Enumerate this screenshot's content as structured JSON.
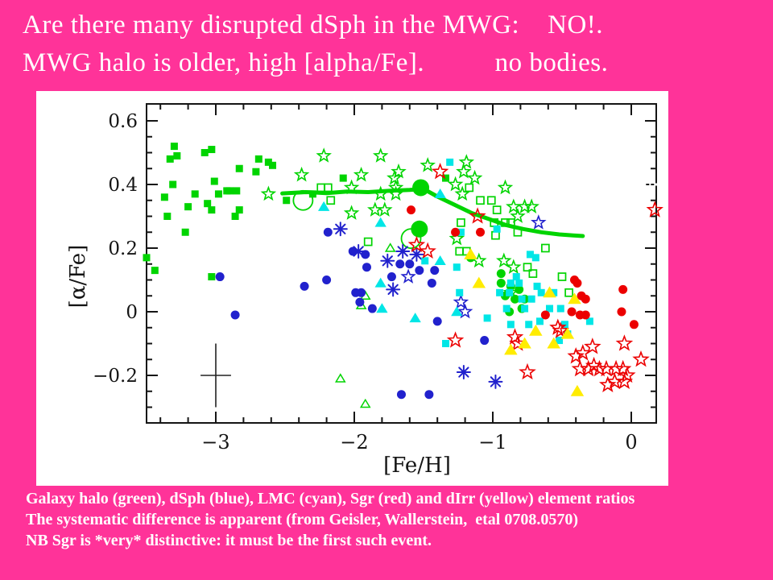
{
  "slide": {
    "background_color": "#FF3399",
    "title_line1": "Are there many disrupted dSph in the MWG:    NO!.",
    "title_line2": "MWG halo is older, high [alpha/Fe].          no bodies.",
    "caption_line1": "Galaxy halo (green), dSph (blue), LMC (cyan), Sgr (red) and dIrr (yellow) element ratios",
    "caption_line2": "The systematic difference is apparent (from Geisler, Wallerstein,  etal 0708.0570)",
    "caption_line3": "NB Sgr is *very* distinctive: it must be the first such event."
  },
  "chart_data": {
    "type": "scatter",
    "title": "",
    "xlabel": "[Fe/H]",
    "ylabel": "[α/Fe]",
    "xlim": [
      -3.5,
      0.18
    ],
    "ylim": [
      -0.35,
      0.653
    ],
    "grid": false,
    "legend_position": "none (legend given in caption text)",
    "x_ticks_major": [
      -3,
      -2,
      -1,
      0
    ],
    "x_tick_labels": [
      "−3",
      "−2",
      "−1",
      "0"
    ],
    "x_minor_step": 0.2,
    "y_ticks_major": [
      0.6,
      0.4,
      0.2,
      0,
      -0.2
    ],
    "y_tick_labels": [
      "0.6",
      "0.4",
      "0.2",
      "0",
      "−0.2"
    ],
    "y_minor_step": 0.05,
    "colors": {
      "green": "#00d400",
      "blue": "#2121cd",
      "cyan": "#00e6e6",
      "red": "#ec0000",
      "yellow": "#ffec00",
      "axis": "#151515",
      "panel": "#ffffff"
    },
    "series": [
      {
        "name": "galaxy-halo-filled-squares",
        "legend": "Galaxy halo (green)",
        "marker": "square-filled",
        "color": "green",
        "size": 9,
        "points": [
          [
            -3.3,
            0.52
          ],
          [
            -3.28,
            0.49
          ],
          [
            -3.33,
            0.48
          ],
          [
            -3.08,
            0.5
          ],
          [
            -3.03,
            0.51
          ],
          [
            -3.31,
            0.4
          ],
          [
            -3.37,
            0.36
          ],
          [
            -3.35,
            0.3
          ],
          [
            -3.2,
            0.33
          ],
          [
            -3.22,
            0.25
          ],
          [
            -3.15,
            0.37
          ],
          [
            -3.06,
            0.34
          ],
          [
            -3.03,
            0.32
          ],
          [
            -3.01,
            0.41
          ],
          [
            -2.98,
            0.37
          ],
          [
            -2.92,
            0.38
          ],
          [
            -2.9,
            0.38
          ],
          [
            -2.85,
            0.38
          ],
          [
            -2.83,
            0.45
          ],
          [
            -2.83,
            0.32
          ],
          [
            -2.86,
            0.3
          ],
          [
            -2.71,
            0.44
          ],
          [
            -2.69,
            0.48
          ],
          [
            -2.62,
            0.47
          ],
          [
            -2.59,
            0.46
          ],
          [
            -2.49,
            0.35
          ],
          [
            -2.3,
            0.37
          ],
          [
            -2.08,
            0.42
          ],
          [
            -1.34,
            0.42
          ],
          [
            -3.5,
            0.17
          ],
          [
            -3.44,
            0.13
          ],
          [
            -3.03,
            0.11
          ]
        ]
      },
      {
        "name": "halo-open-stars",
        "legend": "Galaxy halo (green)",
        "marker": "star-open",
        "color": "green",
        "size": 8,
        "points": [
          [
            -2.22,
            0.49
          ],
          [
            -1.81,
            0.49
          ],
          [
            -2.38,
            0.43
          ],
          [
            -1.95,
            0.43
          ],
          [
            -1.68,
            0.44
          ],
          [
            -2.62,
            0.37
          ],
          [
            -2.02,
            0.39
          ],
          [
            -1.71,
            0.42
          ],
          [
            -1.7,
            0.39
          ],
          [
            -1.81,
            0.37
          ],
          [
            -1.7,
            0.37
          ],
          [
            -1.85,
            0.32
          ],
          [
            -1.78,
            0.32
          ],
          [
            -2.02,
            0.31
          ],
          [
            -1.19,
            0.47
          ],
          [
            -1.21,
            0.44
          ],
          [
            -1.27,
            0.4
          ],
          [
            -1.22,
            0.37
          ],
          [
            -1.47,
            0.46
          ],
          [
            -1.13,
            0.42
          ],
          [
            -0.91,
            0.39
          ],
          [
            -0.85,
            0.33
          ],
          [
            -0.77,
            0.33
          ],
          [
            -0.72,
            0.33
          ],
          [
            -0.82,
            0.3
          ],
          [
            -1.26,
            0.23
          ],
          [
            -1.1,
            0.16
          ],
          [
            -0.92,
            0.16
          ],
          [
            -0.85,
            0.14
          ],
          [
            -0.87,
            0.06
          ]
        ]
      },
      {
        "name": "halo-open-squares",
        "legend": "Galaxy halo (green)",
        "marker": "square-open",
        "color": "green",
        "size": 9,
        "points": [
          [
            -2.24,
            0.39
          ],
          [
            -2.19,
            0.39
          ],
          [
            -2.17,
            0.35
          ],
          [
            -1.9,
            0.22
          ],
          [
            -1.17,
            0.39
          ],
          [
            -1.09,
            0.35
          ],
          [
            -1.01,
            0.35
          ],
          [
            -0.97,
            0.32
          ],
          [
            -1.23,
            0.28
          ],
          [
            -0.99,
            0.28
          ],
          [
            -0.91,
            0.28
          ],
          [
            -0.87,
            0.28
          ],
          [
            -0.82,
            0.25
          ],
          [
            -0.98,
            0.24
          ],
          [
            -1.24,
            0.19
          ],
          [
            -1.19,
            0.19
          ],
          [
            -0.62,
            0.2
          ],
          [
            -0.75,
            0.14
          ],
          [
            -0.5,
            0.11
          ],
          [
            -0.71,
            0.12
          ],
          [
            -0.45,
            0.06
          ]
        ]
      },
      {
        "name": "green-open-triangles",
        "legend": "Galaxy halo (green)",
        "marker": "triangle-open",
        "color": "green",
        "size": 10,
        "points": [
          [
            -2.1,
            -0.21
          ],
          [
            -1.92,
            -0.29
          ],
          [
            -1.95,
            0.02
          ],
          [
            -1.92,
            0.05
          ],
          [
            -1.74,
            0.2
          ]
        ]
      },
      {
        "name": "green-open-circles",
        "legend": "Galaxy halo (green)",
        "marker": "circle-open",
        "color": "green",
        "size": 24,
        "points": [
          [
            -2.37,
            0.35
          ],
          [
            -1.59,
            0.23
          ]
        ]
      },
      {
        "name": "green-large-filled-circles",
        "legend": "Galaxy halo mean (green)",
        "marker": "circle-filled",
        "color": "green",
        "size": 21,
        "points": [
          [
            -1.52,
            0.39
          ],
          [
            -1.53,
            0.26
          ]
        ]
      },
      {
        "name": "green-medium-filled-circles",
        "legend": "green",
        "marker": "circle-filled",
        "color": "green",
        "size": 11,
        "points": [
          [
            -0.94,
            0.09
          ],
          [
            -0.87,
            0.08
          ],
          [
            -0.81,
            0.07
          ],
          [
            -0.91,
            0.05
          ],
          [
            -0.84,
            0.04
          ],
          [
            -0.77,
            0.04
          ],
          [
            -0.88,
            0.0
          ],
          [
            -0.79,
            0.01
          ],
          [
            -0.94,
            0.12
          ],
          [
            -1.16,
            0.17
          ]
        ]
      },
      {
        "name": "dsph-blue-filled-circles",
        "legend": "dSph (blue)",
        "marker": "circle-filled",
        "color": "blue",
        "size": 11,
        "points": [
          [
            -2.19,
            0.25
          ],
          [
            -2.01,
            0.19
          ],
          [
            -1.92,
            0.18
          ],
          [
            -1.91,
            0.14
          ],
          [
            -1.73,
            0.11
          ],
          [
            -1.67,
            0.15
          ],
          [
            -1.6,
            0.15
          ],
          [
            -1.53,
            0.13
          ],
          [
            -1.42,
            0.13
          ],
          [
            -1.44,
            0.09
          ],
          [
            -2.36,
            0.08
          ],
          [
            -2.2,
            0.1
          ],
          [
            -1.95,
            0.06
          ],
          [
            -2.86,
            -0.01
          ],
          [
            -2.97,
            0.11
          ],
          [
            -1.99,
            0.06
          ],
          [
            -1.96,
            0.03
          ],
          [
            -1.87,
            0.01
          ],
          [
            -1.66,
            -0.26
          ],
          [
            -1.46,
            -0.26
          ],
          [
            -1.4,
            -0.03
          ],
          [
            -1.06,
            -0.09
          ]
        ]
      },
      {
        "name": "blue-asterisks",
        "legend": "dSph (blue)",
        "marker": "asterisk",
        "color": "blue",
        "size": 8,
        "points": [
          [
            -2.1,
            0.26
          ],
          [
            -1.97,
            0.19
          ],
          [
            -1.76,
            0.16
          ],
          [
            -1.65,
            0.19
          ],
          [
            -1.55,
            0.18
          ],
          [
            -1.72,
            0.07
          ],
          [
            -1.21,
            -0.19
          ],
          [
            -0.98,
            -0.22
          ]
        ]
      },
      {
        "name": "blue-open-stars",
        "legend": "dSph (blue)",
        "marker": "star-open",
        "color": "blue",
        "size": 8,
        "points": [
          [
            -0.67,
            0.28
          ],
          [
            -1.23,
            0.03
          ],
          [
            -1.2,
            0.0
          ],
          [
            -1.61,
            0.11
          ]
        ]
      },
      {
        "name": "lmc-cyan-filled-squares",
        "legend": "LMC (cyan)",
        "marker": "square-filled",
        "color": "cyan",
        "size": 9,
        "points": [
          [
            -1.31,
            0.47
          ],
          [
            -1.23,
            0.25
          ],
          [
            -1.49,
            0.16
          ],
          [
            -1.26,
            0.14
          ],
          [
            -1.24,
            0.06
          ],
          [
            -1.04,
            -0.02
          ],
          [
            -1.34,
            -0.1
          ],
          [
            -0.97,
            0.26
          ],
          [
            -0.73,
            0.18
          ],
          [
            -0.69,
            0.17
          ],
          [
            -0.83,
            0.11
          ],
          [
            -0.87,
            0.09
          ],
          [
            -0.81,
            0.09
          ],
          [
            -0.68,
            0.08
          ],
          [
            -0.65,
            0.06
          ],
          [
            -0.56,
            0.06
          ],
          [
            -0.88,
            0.06
          ],
          [
            -0.95,
            0.06
          ],
          [
            -0.79,
            0.04
          ],
          [
            -0.72,
            0.04
          ],
          [
            -0.9,
            0.01
          ],
          [
            -0.77,
            0.01
          ],
          [
            -0.59,
            0.01
          ],
          [
            -0.51,
            0.01
          ],
          [
            -0.66,
            -0.03
          ],
          [
            -0.74,
            -0.04
          ],
          [
            -0.87,
            -0.04
          ],
          [
            -0.48,
            -0.04
          ],
          [
            -0.3,
            -0.03
          ],
          [
            -0.46,
            -0.07
          ],
          [
            -0.52,
            -0.09
          ]
        ]
      },
      {
        "name": "cyan-filled-triangles",
        "legend": "LMC (cyan)",
        "marker": "triangle-filled",
        "color": "cyan",
        "size": 13,
        "points": [
          [
            -2.22,
            0.33
          ],
          [
            -1.81,
            0.28
          ],
          [
            -1.38,
            0.37
          ],
          [
            -1.38,
            0.16
          ],
          [
            -1.81,
            0.09
          ],
          [
            -1.26,
            0.0
          ],
          [
            -1.8,
            0.01
          ],
          [
            -1.56,
            -0.02
          ]
        ]
      },
      {
        "name": "sgr-red-filled-circles",
        "legend": "Sgr (red)",
        "marker": "circle-filled",
        "color": "red",
        "size": 11,
        "points": [
          [
            -1.59,
            0.32
          ],
          [
            -1.27,
            0.25
          ],
          [
            -1.09,
            0.25
          ],
          [
            -0.62,
            -0.01
          ],
          [
            -0.41,
            0.1
          ],
          [
            -0.39,
            0.09
          ],
          [
            -0.36,
            0.05
          ],
          [
            -0.33,
            0.04
          ],
          [
            -0.43,
            0.0
          ],
          [
            -0.37,
            -0.01
          ],
          [
            -0.33,
            -0.01
          ],
          [
            -0.06,
            0.07
          ],
          [
            -0.07,
            0.0
          ],
          [
            0.02,
            -0.04
          ]
        ]
      },
      {
        "name": "sgr-red-open-stars",
        "legend": "Sgr (red)",
        "marker": "star-open",
        "color": "red",
        "size": 9,
        "points": [
          [
            -1.38,
            0.44
          ],
          [
            -1.11,
            0.3
          ],
          [
            -1.55,
            0.21
          ],
          [
            -1.47,
            0.19
          ],
          [
            -1.27,
            -0.09
          ],
          [
            -0.53,
            -0.05
          ],
          [
            -0.51,
            -0.06
          ],
          [
            -0.28,
            -0.11
          ],
          [
            -0.35,
            -0.13
          ],
          [
            -0.4,
            -0.14
          ],
          [
            -0.37,
            -0.18
          ],
          [
            -0.31,
            -0.18
          ],
          [
            -0.27,
            -0.17
          ],
          [
            -0.23,
            -0.18
          ],
          [
            -0.18,
            -0.18
          ],
          [
            -0.11,
            -0.18
          ],
          [
            -0.05,
            -0.1
          ],
          [
            0.07,
            -0.15
          ],
          [
            -0.06,
            -0.18
          ],
          [
            -0.03,
            -0.2
          ],
          [
            -0.17,
            -0.23
          ],
          [
            -0.12,
            -0.22
          ],
          [
            -0.05,
            -0.22
          ],
          [
            -0.75,
            -0.19
          ],
          [
            -0.84,
            -0.08
          ],
          [
            -0.82,
            -0.1
          ],
          [
            0.17,
            0.32
          ]
        ]
      },
      {
        "name": "dirr-yellow-triangles",
        "legend": "dIrr (yellow)",
        "marker": "triangle-filled",
        "color": "yellow",
        "size": 15,
        "points": [
          [
            -1.16,
            0.18
          ],
          [
            -1.1,
            0.09
          ],
          [
            -0.59,
            0.06
          ],
          [
            -0.69,
            -0.06
          ],
          [
            -0.56,
            -0.1
          ],
          [
            -0.87,
            -0.12
          ],
          [
            -0.77,
            -0.1
          ],
          [
            -0.46,
            -0.07
          ],
          [
            -0.41,
            0.04
          ],
          [
            -0.39,
            -0.25
          ]
        ]
      }
    ],
    "trend_line": {
      "name": "halo-mean-trend-line",
      "color": "green",
      "width": 5,
      "points": [
        [
          -2.52,
          0.372
        ],
        [
          -2.35,
          0.376
        ],
        [
          -2.2,
          0.373
        ],
        [
          -2.05,
          0.378
        ],
        [
          -1.9,
          0.376
        ],
        [
          -1.75,
          0.38
        ],
        [
          -1.6,
          0.383
        ],
        [
          -1.5,
          0.386
        ],
        [
          -1.4,
          0.362
        ],
        [
          -1.28,
          0.337
        ],
        [
          -1.15,
          0.31
        ],
        [
          -1.02,
          0.29
        ],
        [
          -0.9,
          0.272
        ],
        [
          -0.78,
          0.26
        ],
        [
          -0.65,
          0.25
        ],
        [
          -0.52,
          0.243
        ],
        [
          -0.42,
          0.24
        ],
        [
          -0.35,
          0.238
        ]
      ]
    },
    "error_cross": {
      "x": -3.0,
      "y": -0.2,
      "half_width": 0.11,
      "half_height": 0.1
    },
    "white_dash_line": {
      "y": 0.4,
      "x_start": 0.06,
      "x_end": 0.25,
      "color": "#ffffff"
    }
  }
}
